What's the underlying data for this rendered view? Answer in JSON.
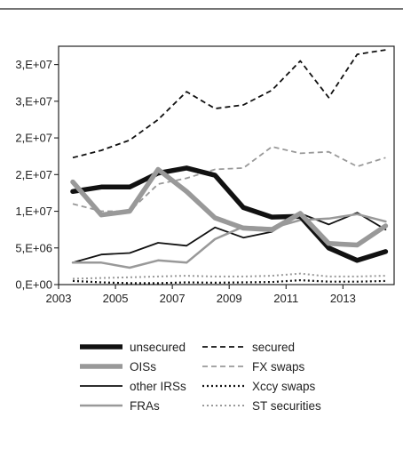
{
  "chart_data": {
    "type": "line",
    "title": "",
    "xlabel": "",
    "ylabel": "",
    "xlim": [
      2003,
      2014.8
    ],
    "ylim": [
      0,
      32500000
    ],
    "x_ticks": [
      2003,
      2005,
      2007,
      2009,
      2011,
      2013
    ],
    "x_tick_labels": [
      "2003",
      "2005",
      "2007",
      "2009",
      "2011",
      "2013"
    ],
    "y_ticks": [
      0,
      5000000,
      10000000,
      15000000,
      20000000,
      25000000,
      30000000
    ],
    "y_tick_labels": [
      "0,E+00",
      "5,E+06",
      "1,E+07",
      "2,E+07",
      "2,E+07",
      "3,E+07",
      "3,E+07"
    ],
    "grid": false,
    "legend_position": "bottom",
    "x": [
      2003.5,
      2004.5,
      2005.5,
      2006.5,
      2007.5,
      2008.5,
      2009.5,
      2010.5,
      2011.5,
      2012.5,
      2013.5,
      2014.5
    ],
    "series": [
      {
        "name": "unsecured",
        "color": "#111111",
        "width": 5.5,
        "dash": "",
        "values": [
          12700000,
          13300000,
          13300000,
          15200000,
          15900000,
          14900000,
          10500000,
          9200000,
          9300000,
          5000000,
          3300000,
          4500000
        ]
      },
      {
        "name": "secured",
        "color": "#111111",
        "width": 1.8,
        "dash": "6,4",
        "values": [
          17300000,
          18300000,
          19700000,
          22500000,
          26300000,
          24000000,
          24500000,
          26500000,
          30500000,
          25500000,
          31400000,
          32000000
        ]
      },
      {
        "name": "OISs",
        "color": "#999999",
        "width": 5.5,
        "dash": "",
        "values": [
          14000000,
          9500000,
          10000000,
          15700000,
          12700000,
          9100000,
          7700000,
          7500000,
          9700000,
          5600000,
          5400000,
          8000000
        ]
      },
      {
        "name": "FX swaps",
        "color": "#999999",
        "width": 1.8,
        "dash": "6,4",
        "values": [
          11000000,
          10000000,
          10000000,
          13700000,
          14500000,
          15700000,
          15900000,
          18800000,
          17900000,
          18100000,
          16100000,
          17300000
        ]
      },
      {
        "name": "other IRSs",
        "color": "#111111",
        "width": 1.8,
        "dash": "",
        "values": [
          3000000,
          4100000,
          4300000,
          5700000,
          5300000,
          7800000,
          6400000,
          7200000,
          9700000,
          8200000,
          9800000,
          7500000
        ]
      },
      {
        "name": "Xccy swaps",
        "color": "#111111",
        "width": 2.2,
        "dash": "2,3",
        "values": [
          500000,
          300000,
          200000,
          200000,
          300000,
          250000,
          300000,
          350000,
          600000,
          400000,
          400000,
          500000
        ]
      },
      {
        "name": "FRAs",
        "color": "#999999",
        "width": 2.5,
        "dash": "",
        "values": [
          3000000,
          3000000,
          2300000,
          3300000,
          3000000,
          6200000,
          7900000,
          7700000,
          8800000,
          9000000,
          9600000,
          8600000
        ]
      },
      {
        "name": "ST securities",
        "color": "#999999",
        "width": 2.0,
        "dash": "2,3",
        "values": [
          800000,
          900000,
          1000000,
          1100000,
          1200000,
          1100000,
          1100000,
          1200000,
          1500000,
          1100000,
          1100000,
          1200000
        ]
      }
    ]
  }
}
